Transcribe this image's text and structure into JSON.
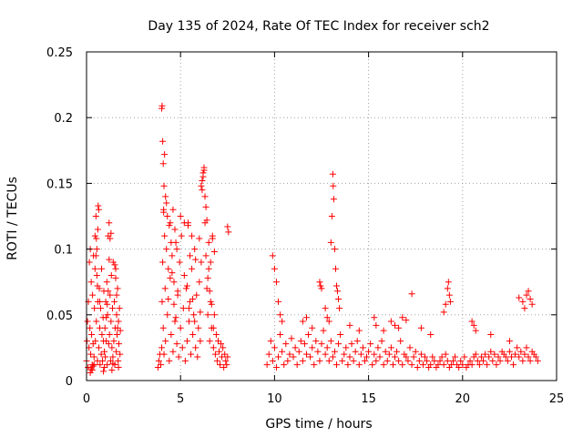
{
  "chart_data": {
    "type": "scatter",
    "title": "Day 135 of 2024, Rate Of TEC Index for receiver sch2",
    "xlabel": "GPS time / hours",
    "ylabel": "ROTI / TECUs",
    "xlim": [
      0,
      25
    ],
    "ylim": [
      0,
      0.25
    ],
    "x_ticks": [
      0,
      5,
      10,
      15,
      20,
      25
    ],
    "x_tick_labels": [
      "0",
      "5",
      "10",
      "15",
      "20",
      "25"
    ],
    "y_ticks": [
      0,
      0.05,
      0.1,
      0.15,
      0.2,
      0.25
    ],
    "y_tick_labels": [
      "0",
      "0.05",
      "0.1",
      "0.15",
      "0.2",
      "0.25"
    ],
    "grid": true,
    "legend": "none",
    "marker": "plus",
    "colors": {
      "points": "#ff0000",
      "axes": "#000000",
      "grid": "#a0a0a0"
    },
    "series": [
      {
        "x": [
          0.0,
          0.02,
          0.05,
          0.08,
          0.1,
          0.13,
          0.15,
          0.18,
          0.2,
          0.22,
          0.25,
          0.27,
          0.3,
          0.32,
          0.35,
          0.37,
          0.4,
          0.42,
          0.45,
          0.47,
          0.5,
          0.52,
          0.55,
          0.58,
          0.6,
          0.62,
          0.65,
          0.68,
          0.7,
          0.72,
          0.75,
          0.78,
          0.8,
          0.82,
          0.85,
          0.88,
          0.9,
          0.92,
          0.95,
          0.98,
          1.0,
          1.02,
          1.05,
          1.08,
          1.1,
          1.12,
          1.15,
          1.18,
          1.2,
          1.22,
          1.25,
          1.28,
          1.3,
          1.32,
          1.35,
          1.38,
          1.4,
          1.42,
          1.45,
          1.48,
          1.5,
          1.52,
          1.55,
          1.58,
          1.6,
          1.62,
          1.65,
          1.68,
          1.7,
          1.72,
          1.75,
          1.78,
          1.8,
          0.3,
          0.4,
          0.5,
          0.55,
          0.6,
          0.65,
          0.7,
          0.45,
          0.52,
          0.58,
          1.2,
          1.25,
          1.3,
          1.05,
          1.1,
          1.15,
          1.5,
          1.55,
          1.6,
          1.65,
          0.2,
          0.25,
          0.35,
          0.9,
          0.95,
          1.35,
          1.4,
          1.7,
          3.8,
          3.85,
          3.9,
          3.95,
          4.0,
          4.02,
          4.05,
          4.08,
          4.1,
          4.12,
          4.15,
          4.18,
          4.2,
          4.25,
          4.3,
          4.35,
          4.4,
          4.45,
          4.5,
          4.55,
          4.6,
          4.65,
          4.7,
          4.75,
          4.8,
          4.85,
          4.9,
          4.95,
          5.0,
          5.05,
          5.1,
          5.15,
          5.2,
          5.25,
          5.3,
          5.35,
          5.4,
          5.45,
          5.5,
          5.55,
          5.6,
          5.65,
          5.7,
          5.75,
          5.8,
          5.85,
          5.9,
          5.95,
          6.0,
          6.05,
          6.1,
          6.15,
          6.2,
          6.25,
          6.3,
          6.35,
          6.4,
          6.45,
          6.5,
          6.55,
          6.6,
          6.65,
          6.7,
          6.75,
          6.8,
          6.85,
          6.9,
          6.95,
          7.0,
          7.05,
          7.1,
          7.15,
          7.2,
          7.25,
          7.3,
          7.35,
          7.4,
          7.45,
          7.5,
          4.0,
          4.02,
          4.05,
          4.08,
          4.1,
          4.12,
          4.15,
          4.2,
          4.25,
          4.3,
          4.4,
          4.5,
          4.6,
          4.7,
          4.8,
          5.0,
          5.2,
          5.4,
          5.5,
          5.6,
          5.8,
          6.0,
          6.1,
          6.15,
          6.2,
          6.25,
          6.3,
          6.35,
          6.4,
          6.5,
          6.6,
          6.7,
          6.8,
          7.5,
          7.55,
          4.35,
          4.45,
          4.55,
          4.65,
          4.75,
          4.85,
          5.35,
          5.45,
          5.65,
          5.75,
          6.05,
          6.45,
          6.55,
          6.65,
          6.75,
          9.6,
          9.7,
          9.8,
          9.9,
          10.0,
          10.1,
          10.2,
          10.3,
          10.4,
          10.5,
          10.6,
          10.7,
          10.8,
          10.9,
          11.0,
          11.1,
          11.2,
          11.3,
          11.4,
          11.5,
          11.6,
          11.7,
          11.8,
          11.9,
          12.0,
          12.1,
          12.2,
          12.3,
          12.4,
          12.5,
          12.6,
          12.7,
          12.8,
          12.9,
          13.0,
          13.1,
          13.2,
          13.3,
          13.4,
          13.5,
          13.6,
          13.7,
          13.8,
          13.9,
          14.0,
          14.1,
          14.2,
          14.3,
          14.4,
          14.5,
          14.6,
          14.7,
          14.8,
          14.9,
          15.0,
          15.1,
          15.2,
          15.3,
          15.4,
          15.5,
          15.6,
          15.7,
          15.8,
          15.9,
          16.0,
          16.1,
          16.2,
          16.3,
          16.4,
          16.5,
          16.6,
          16.7,
          16.8,
          16.9,
          17.0,
          17.1,
          17.2,
          17.3,
          17.4,
          17.5,
          17.6,
          17.7,
          17.8,
          17.9,
          18.0,
          18.1,
          18.2,
          18.3,
          18.4,
          18.5,
          18.6,
          18.7,
          18.8,
          18.9,
          19.0,
          19.1,
          19.2,
          19.3,
          19.4,
          19.5,
          19.6,
          19.7,
          19.8,
          19.9,
          20.0,
          20.1,
          20.2,
          20.3,
          20.4,
          20.5,
          20.6,
          20.7,
          20.8,
          20.9,
          21.0,
          21.1,
          21.2,
          21.3,
          21.4,
          21.5,
          21.6,
          21.7,
          21.8,
          21.9,
          22.0,
          22.1,
          22.2,
          22.3,
          22.4,
          22.5,
          22.6,
          22.7,
          22.8,
          22.9,
          23.0,
          23.1,
          23.2,
          23.3,
          23.4,
          23.5,
          23.6,
          23.7,
          23.8,
          23.9,
          24.0,
          9.9,
          10.0,
          10.1,
          10.2,
          10.3,
          10.4,
          12.4,
          12.45,
          12.5,
          12.7,
          12.8,
          12.9,
          13.0,
          13.05,
          13.1,
          13.12,
          13.15,
          13.2,
          13.25,
          13.3,
          13.35,
          13.4,
          13.45,
          15.3,
          15.4,
          15.8,
          16.2,
          16.4,
          16.6,
          16.8,
          17.0,
          17.3,
          19.0,
          19.1,
          19.2,
          19.25,
          19.3,
          19.35,
          20.5,
          20.6,
          20.7,
          23.0,
          23.2,
          23.3,
          23.4,
          23.5,
          23.6,
          23.7,
          11.5,
          11.7,
          12.0,
          14.0,
          14.5,
          17.8,
          18.3,
          21.5,
          22.5
        ],
        "y": [
          0.015,
          0.03,
          0.045,
          0.01,
          0.06,
          0.025,
          0.09,
          0.04,
          0.1,
          0.02,
          0.075,
          0.035,
          0.012,
          0.065,
          0.028,
          0.095,
          0.018,
          0.055,
          0.11,
          0.03,
          0.125,
          0.045,
          0.08,
          0.015,
          0.06,
          0.133,
          0.025,
          0.07,
          0.04,
          0.012,
          0.055,
          0.02,
          0.085,
          0.035,
          0.015,
          0.048,
          0.03,
          0.068,
          0.022,
          0.04,
          0.018,
          0.06,
          0.03,
          0.075,
          0.012,
          0.05,
          0.11,
          0.028,
          0.12,
          0.035,
          0.065,
          0.015,
          0.045,
          0.08,
          0.025,
          0.055,
          0.018,
          0.09,
          0.03,
          0.06,
          0.012,
          0.04,
          0.085,
          0.022,
          0.05,
          0.035,
          0.07,
          0.015,
          0.045,
          0.028,
          0.055,
          0.02,
          0.038,
          0.008,
          0.012,
          0.095,
          0.1,
          0.115,
          0.13,
          0.06,
          0.085,
          0.108,
          0.072,
          0.092,
          0.108,
          0.112,
          0.048,
          0.058,
          0.068,
          0.088,
          0.078,
          0.065,
          0.04,
          0.006,
          0.009,
          0.011,
          0.007,
          0.01,
          0.008,
          0.013,
          0.01,
          0.01,
          0.015,
          0.02,
          0.012,
          0.025,
          0.06,
          0.09,
          0.04,
          0.13,
          0.02,
          0.11,
          0.07,
          0.03,
          0.1,
          0.05,
          0.085,
          0.015,
          0.12,
          0.035,
          0.095,
          0.022,
          0.075,
          0.045,
          0.105,
          0.028,
          0.065,
          0.018,
          0.09,
          0.04,
          0.11,
          0.025,
          0.055,
          0.08,
          0.015,
          0.07,
          0.03,
          0.12,
          0.045,
          0.06,
          0.02,
          0.085,
          0.035,
          0.05,
          0.1,
          0.025,
          0.065,
          0.018,
          0.04,
          0.075,
          0.03,
          0.09,
          0.145,
          0.155,
          0.16,
          0.12,
          0.095,
          0.07,
          0.05,
          0.085,
          0.03,
          0.06,
          0.04,
          0.11,
          0.025,
          0.05,
          0.02,
          0.035,
          0.015,
          0.03,
          0.022,
          0.012,
          0.028,
          0.018,
          0.025,
          0.01,
          0.02,
          0.015,
          0.012,
          0.018,
          0.207,
          0.209,
          0.182,
          0.165,
          0.128,
          0.148,
          0.172,
          0.14,
          0.135,
          0.125,
          0.118,
          0.105,
          0.13,
          0.115,
          0.1,
          0.125,
          0.12,
          0.118,
          0.095,
          0.11,
          0.092,
          0.108,
          0.148,
          0.152,
          0.158,
          0.162,
          0.14,
          0.132,
          0.122,
          0.105,
          0.09,
          0.108,
          0.098,
          0.117,
          0.113,
          0.062,
          0.078,
          0.082,
          0.058,
          0.048,
          0.068,
          0.072,
          0.055,
          0.062,
          0.045,
          0.052,
          0.078,
          0.068,
          0.058,
          0.04,
          0.012,
          0.02,
          0.03,
          0.015,
          0.025,
          0.01,
          0.018,
          0.035,
          0.022,
          0.012,
          0.028,
          0.015,
          0.02,
          0.032,
          0.018,
          0.025,
          0.012,
          0.022,
          0.03,
          0.015,
          0.028,
          0.02,
          0.035,
          0.018,
          0.025,
          0.012,
          0.03,
          0.022,
          0.015,
          0.028,
          0.038,
          0.02,
          0.025,
          0.015,
          0.03,
          0.018,
          0.022,
          0.012,
          0.028,
          0.035,
          0.015,
          0.02,
          0.025,
          0.012,
          0.018,
          0.028,
          0.015,
          0.022,
          0.03,
          0.012,
          0.02,
          0.025,
          0.015,
          0.018,
          0.022,
          0.028,
          0.012,
          0.02,
          0.015,
          0.025,
          0.018,
          0.03,
          0.012,
          0.022,
          0.015,
          0.02,
          0.025,
          0.012,
          0.018,
          0.022,
          0.015,
          0.03,
          0.012,
          0.02,
          0.018,
          0.015,
          0.025,
          0.012,
          0.018,
          0.022,
          0.01,
          0.015,
          0.02,
          0.012,
          0.018,
          0.015,
          0.01,
          0.012,
          0.018,
          0.015,
          0.01,
          0.012,
          0.015,
          0.018,
          0.012,
          0.02,
          0.015,
          0.01,
          0.012,
          0.015,
          0.018,
          0.012,
          0.01,
          0.015,
          0.012,
          0.018,
          0.01,
          0.012,
          0.015,
          0.012,
          0.018,
          0.02,
          0.015,
          0.012,
          0.018,
          0.015,
          0.02,
          0.012,
          0.018,
          0.022,
          0.015,
          0.02,
          0.012,
          0.018,
          0.015,
          0.022,
          0.02,
          0.018,
          0.015,
          0.022,
          0.018,
          0.012,
          0.02,
          0.025,
          0.018,
          0.022,
          0.015,
          0.02,
          0.025,
          0.018,
          0.015,
          0.022,
          0.02,
          0.018,
          0.015,
          0.095,
          0.085,
          0.075,
          0.06,
          0.05,
          0.045,
          0.075,
          0.072,
          0.07,
          0.055,
          0.048,
          0.045,
          0.105,
          0.125,
          0.157,
          0.148,
          0.138,
          0.1,
          0.085,
          0.072,
          0.068,
          0.062,
          0.055,
          0.048,
          0.042,
          0.038,
          0.045,
          0.042,
          0.04,
          0.048,
          0.046,
          0.066,
          0.052,
          0.058,
          0.07,
          0.075,
          0.065,
          0.06,
          0.045,
          0.042,
          0.038,
          0.063,
          0.06,
          0.055,
          0.065,
          0.068,
          0.062,
          0.058,
          0.045,
          0.048,
          0.04,
          0.042,
          0.038,
          0.04,
          0.035,
          0.035,
          0.03
        ]
      }
    ]
  }
}
